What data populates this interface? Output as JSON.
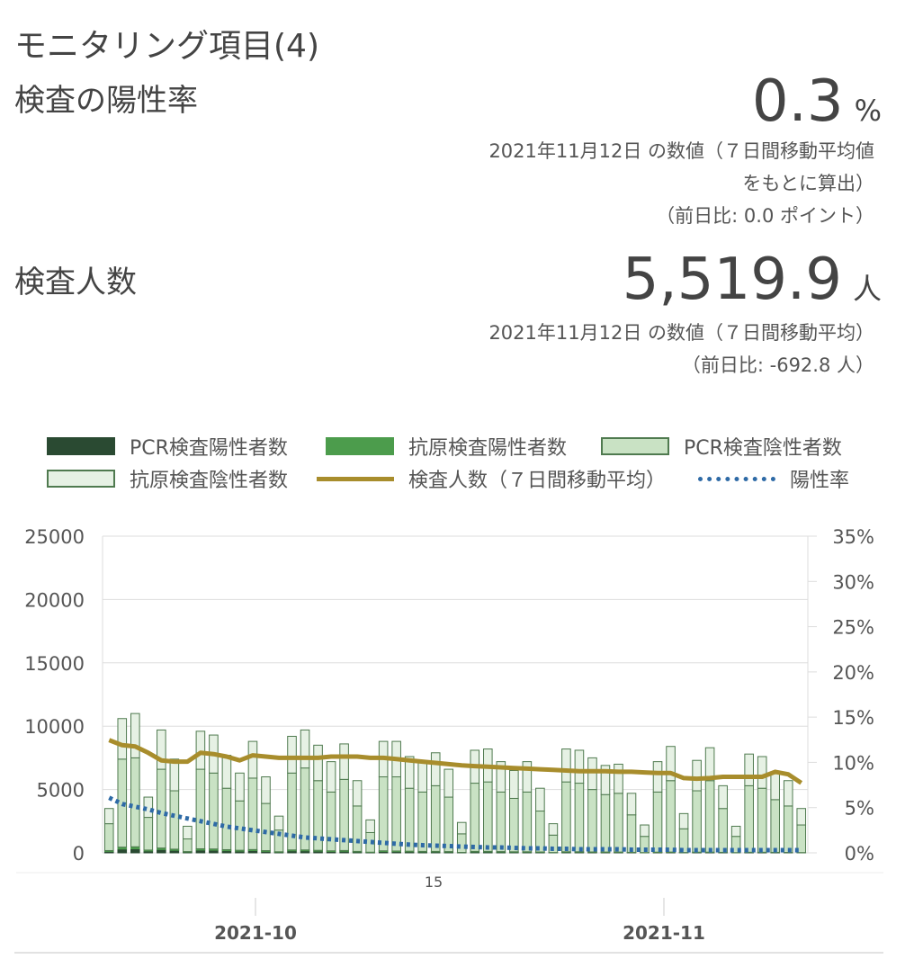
{
  "header": {
    "title": "モニタリング項目(4)"
  },
  "positivity": {
    "label": "検査の陽性率",
    "value": "0.3",
    "unit": "%",
    "note_line1": "2021年11月12日 の数値（７日間移動平均値",
    "note_line2": "をもとに算出）",
    "note_line3": "（前日比: 0.0 ポイント）"
  },
  "tests": {
    "label": "検査人数",
    "value": "5,519.9",
    "unit": "人",
    "note_line1": "2021年11月12日 の数値（７日間移動平均）",
    "note_line2": "（前日比: -692.8 人）"
  },
  "legend": [
    {
      "label": "PCR検査陽性者数",
      "kind": "box",
      "fill": "#2a4a32",
      "stroke": "#2a4a32"
    },
    {
      "label": "抗原検査陽性者数",
      "kind": "box",
      "fill": "#4c9c4c",
      "stroke": "#4c9c4c"
    },
    {
      "label": "PCR検査陰性者数",
      "kind": "box",
      "fill": "#c9e2c4",
      "stroke": "#4f7a4f"
    },
    {
      "label": "抗原検査陰性者数",
      "kind": "box",
      "fill": "#e6f1e4",
      "stroke": "#4f7a4f"
    },
    {
      "label": "検査人数（７日間移動平均）",
      "kind": "line",
      "color": "#a88d2c"
    },
    {
      "label": "陽性率",
      "kind": "dots",
      "color": "#2e6aa6"
    }
  ],
  "chart_data": {
    "type": "bar",
    "stacked": true,
    "x_range": [
      "2021-09-15",
      "2021-11-12"
    ],
    "y_left": {
      "min": 0,
      "max": 25000,
      "ticks": [
        0,
        5000,
        10000,
        15000,
        20000,
        25000
      ]
    },
    "y_right": {
      "min": 0,
      "max": 35,
      "ticks": [
        "0%",
        "5%",
        "10%",
        "15%",
        "20%",
        "25%",
        "30%",
        "35%"
      ]
    },
    "x_labels": {
      "minor": "15",
      "month1": "2021-10",
      "month2": "2021-11"
    },
    "total_tests": [
      3500,
      10600,
      11000,
      4400,
      9700,
      7400,
      2100,
      9600,
      9300,
      7700,
      6300,
      8800,
      6000,
      2900,
      9200,
      9700,
      8500,
      7200,
      8600,
      5700,
      2600,
      8800,
      8800,
      7600,
      7200,
      7900,
      6600,
      2400,
      8100,
      8200,
      7200,
      6500,
      7200,
      5100,
      2300,
      8200,
      8100,
      7500,
      6900,
      7000,
      4700,
      2200,
      7200,
      8400,
      3100,
      7300,
      8300,
      5300,
      2100,
      7800,
      7600,
      6400,
      5700,
      3500
    ],
    "antigen_negative": [
      1200,
      3200,
      3500,
      1600,
      3100,
      2500,
      1000,
      3000,
      3000,
      2600,
      2200,
      2900,
      2100,
      1100,
      2900,
      3000,
      2800,
      2400,
      2800,
      2000,
      1000,
      2800,
      2800,
      2500,
      2400,
      2600,
      2200,
      900,
      2600,
      2600,
      2400,
      2200,
      2400,
      1800,
      900,
      2600,
      2600,
      2500,
      2300,
      2300,
      1700,
      900,
      2400,
      2700,
      1200,
      2400,
      2600,
      1800,
      800,
      2500,
      2500,
      2200,
      2000,
      1300
    ],
    "pcr_positive": [
      120,
      300,
      320,
      150,
      260,
      200,
      70,
      220,
      210,
      170,
      140,
      180,
      120,
      60,
      160,
      160,
      140,
      110,
      130,
      80,
      40,
      110,
      100,
      90,
      80,
      80,
      70,
      25,
      80,
      80,
      70,
      60,
      60,
      50,
      20,
      60,
      60,
      50,
      45,
      45,
      30,
      15,
      40,
      45,
      20,
      40,
      40,
      30,
      12,
      35,
      35,
      30,
      25,
      15
    ],
    "antigen_positive": [
      60,
      150,
      160,
      70,
      120,
      90,
      30,
      100,
      95,
      80,
      65,
      80,
      55,
      25,
      70,
      70,
      60,
      50,
      55,
      35,
      15,
      50,
      45,
      40,
      35,
      35,
      30,
      10,
      35,
      35,
      30,
      25,
      25,
      20,
      8,
      25,
      25,
      20,
      18,
      18,
      12,
      6,
      16,
      18,
      8,
      16,
      16,
      12,
      5,
      14,
      14,
      12,
      10,
      6
    ],
    "moving_average": [
      8900,
      8500,
      8400,
      7900,
      7300,
      7200,
      7200,
      7900,
      7800,
      7600,
      7300,
      7700,
      7600,
      7500,
      7500,
      7500,
      7500,
      7600,
      7600,
      7600,
      7500,
      7500,
      7400,
      7300,
      7200,
      7100,
      7000,
      6900,
      6850,
      6800,
      6750,
      6700,
      6650,
      6600,
      6550,
      6500,
      6450,
      6450,
      6450,
      6400,
      6400,
      6350,
      6300,
      6300,
      5900,
      5850,
      5900,
      6000,
      6000,
      6000,
      6000,
      6400,
      6200,
      5519.9
    ],
    "positivity_rate": [
      6.1,
      5.4,
      5.1,
      4.8,
      4.4,
      4.1,
      3.8,
      3.5,
      3.2,
      2.9,
      2.7,
      2.5,
      2.3,
      2.1,
      1.9,
      1.7,
      1.6,
      1.5,
      1.4,
      1.3,
      1.2,
      1.1,
      1.0,
      0.9,
      0.85,
      0.8,
      0.75,
      0.7,
      0.65,
      0.6,
      0.6,
      0.55,
      0.5,
      0.5,
      0.45,
      0.45,
      0.4,
      0.4,
      0.4,
      0.4,
      0.35,
      0.35,
      0.35,
      0.35,
      0.3,
      0.3,
      0.3,
      0.3,
      0.3,
      0.3,
      0.3,
      0.3,
      0.3,
      0.3
    ]
  }
}
